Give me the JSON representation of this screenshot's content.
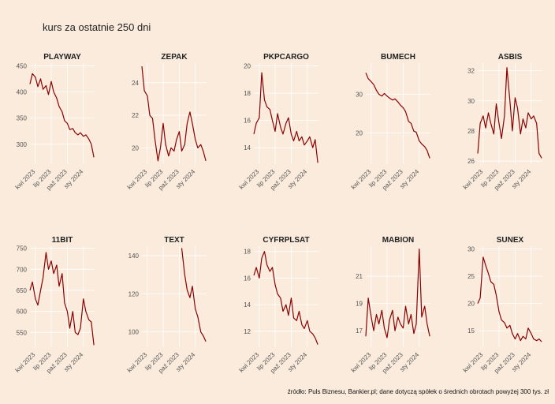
{
  "title": "kurs za ostatnie 250 dni",
  "caption": "źródło: Puls Biznesu, Bankier.pl; dane dotyczą spółek o średnich obrotach powyżej 300 tys. zł",
  "colors": {
    "background": "#faebdc",
    "line": "#8b0000",
    "grid": "#ffffff"
  },
  "chart_data": [
    {
      "type": "line",
      "title": "PLAYWAY",
      "ylim": [
        262,
        455
      ],
      "yticks": [
        300,
        350,
        400,
        450
      ],
      "xticks": [
        "kwi 2023",
        "lip 2023",
        "paź 2023",
        "sty 2024"
      ],
      "x_domain": [
        "2023-03-01",
        "2024-03-05"
      ],
      "x": [
        "2023-03-01",
        "2023-03-15",
        "2023-04-01",
        "2023-04-15",
        "2023-05-01",
        "2023-05-15",
        "2023-06-01",
        "2023-06-15",
        "2023-07-01",
        "2023-07-15",
        "2023-08-01",
        "2023-08-15",
        "2023-09-01",
        "2023-09-15",
        "2023-10-01",
        "2023-10-15",
        "2023-11-01",
        "2023-11-15",
        "2023-12-01",
        "2023-12-15",
        "2024-01-01",
        "2024-01-15",
        "2024-02-01",
        "2024-02-15",
        "2024-03-01"
      ],
      "values": [
        415,
        435,
        428,
        410,
        425,
        405,
        412,
        395,
        420,
        400,
        388,
        372,
        362,
        345,
        340,
        328,
        330,
        322,
        318,
        322,
        315,
        318,
        310,
        300,
        275
      ]
    },
    {
      "type": "line",
      "title": "ZEPAK",
      "ylim": [
        19.0,
        25.2
      ],
      "yticks": [
        20,
        22,
        24
      ],
      "xticks": [
        "kwi 2023",
        "lip 2023",
        "paź 2023",
        "sty 2024"
      ],
      "x_domain": [
        "2023-03-01",
        "2024-03-05"
      ],
      "x": [
        "2023-03-01",
        "2023-03-15",
        "2023-04-01",
        "2023-04-15",
        "2023-05-01",
        "2023-05-15",
        "2023-06-01",
        "2023-06-15",
        "2023-07-01",
        "2023-07-15",
        "2023-08-01",
        "2023-08-15",
        "2023-09-01",
        "2023-09-15",
        "2023-10-01",
        "2023-10-15",
        "2023-11-01",
        "2023-11-15",
        "2023-12-01",
        "2023-12-15",
        "2024-01-01",
        "2024-01-15",
        "2024-02-01",
        "2024-02-15",
        "2024-03-01"
      ],
      "values": [
        25.0,
        23.5,
        23.2,
        22.0,
        21.8,
        20.5,
        19.2,
        20.0,
        21.5,
        20.2,
        19.5,
        20.0,
        19.8,
        20.5,
        21.0,
        19.8,
        20.2,
        21.5,
        22.2,
        21.5,
        20.5,
        20.0,
        20.2,
        19.8,
        19.2
      ]
    },
    {
      "type": "line",
      "title": "PKPCARGO",
      "ylim": [
        12.8,
        20.2
      ],
      "yticks": [
        14,
        16,
        18,
        20
      ],
      "xticks": [
        "kwi 2023",
        "lip 2023",
        "paź 2023",
        "sty 2024"
      ],
      "x_domain": [
        "2023-03-01",
        "2024-03-05"
      ],
      "x": [
        "2023-03-01",
        "2023-03-15",
        "2023-04-01",
        "2023-04-15",
        "2023-05-01",
        "2023-05-15",
        "2023-06-01",
        "2023-06-15",
        "2023-07-01",
        "2023-07-15",
        "2023-08-01",
        "2023-08-15",
        "2023-09-01",
        "2023-09-15",
        "2023-10-01",
        "2023-10-15",
        "2023-11-01",
        "2023-11-15",
        "2023-12-01",
        "2023-12-15",
        "2024-01-01",
        "2024-01-15",
        "2024-02-01",
        "2024-02-15",
        "2024-03-01"
      ],
      "values": [
        15.0,
        15.8,
        16.2,
        19.5,
        17.5,
        17.0,
        16.8,
        16.0,
        15.2,
        16.5,
        15.5,
        15.0,
        15.8,
        16.2,
        15.0,
        14.5,
        15.2,
        14.5,
        14.8,
        14.2,
        14.5,
        14.8,
        14.0,
        14.6,
        12.9
      ]
    },
    {
      "type": "line",
      "title": "BUMECH",
      "ylim": [
        12,
        38
      ],
      "yticks": [
        20,
        30
      ],
      "xticks": [
        "kwi 2023",
        "lip 2023",
        "paź 2023",
        "sty 2024"
      ],
      "x_domain": [
        "2023-03-01",
        "2024-03-05"
      ],
      "x": [
        "2023-03-01",
        "2023-03-15",
        "2023-04-01",
        "2023-04-15",
        "2023-05-01",
        "2023-05-15",
        "2023-06-01",
        "2023-06-15",
        "2023-07-01",
        "2023-07-15",
        "2023-08-01",
        "2023-08-15",
        "2023-09-01",
        "2023-09-15",
        "2023-10-01",
        "2023-10-15",
        "2023-11-01",
        "2023-11-15",
        "2023-12-01",
        "2023-12-15",
        "2024-01-01",
        "2024-01-15",
        "2024-02-01",
        "2024-02-15",
        "2024-03-01"
      ],
      "values": [
        35.5,
        34.0,
        33.2,
        32.5,
        31.0,
        30.0,
        29.5,
        30.2,
        29.5,
        29.0,
        28.5,
        28.8,
        28.0,
        27.2,
        26.5,
        25.5,
        23.0,
        22.5,
        20.5,
        20.2,
        18.0,
        17.2,
        16.5,
        15.5,
        13.5
      ]
    },
    {
      "type": "line",
      "title": "ASBIS",
      "ylim": [
        25.8,
        32.5
      ],
      "yticks": [
        26,
        28,
        30,
        32
      ],
      "xticks": [
        "kwi 2023",
        "lip 2023",
        "paź 2023",
        "sty 2024"
      ],
      "x_domain": [
        "2023-03-01",
        "2024-03-05"
      ],
      "x": [
        "2023-03-01",
        "2023-03-15",
        "2023-04-01",
        "2023-04-15",
        "2023-05-01",
        "2023-05-15",
        "2023-06-01",
        "2023-06-15",
        "2023-07-01",
        "2023-07-15",
        "2023-08-01",
        "2023-08-15",
        "2023-09-01",
        "2023-09-15",
        "2023-10-01",
        "2023-10-15",
        "2023-11-01",
        "2023-11-15",
        "2023-12-01",
        "2023-12-15",
        "2024-01-01",
        "2024-01-15",
        "2024-02-01",
        "2024-02-15",
        "2024-03-01"
      ],
      "values": [
        26.5,
        28.5,
        29.0,
        28.2,
        29.2,
        28.5,
        27.8,
        29.8,
        28.5,
        27.5,
        29.0,
        32.2,
        30.0,
        28.0,
        30.2,
        29.5,
        27.8,
        28.8,
        28.2,
        29.2,
        28.8,
        29.0,
        28.5,
        26.5,
        26.2
      ]
    },
    {
      "type": "line",
      "title": "11BIT",
      "ylim": [
        515,
        755
      ],
      "yticks": [
        550,
        600,
        650,
        700,
        750
      ],
      "xticks": [
        "kwi 2023",
        "lip 2023",
        "paź 2023",
        "sty 2024"
      ],
      "x_domain": [
        "2023-03-01",
        "2024-03-05"
      ],
      "x": [
        "2023-03-01",
        "2023-03-15",
        "2023-04-01",
        "2023-04-15",
        "2023-05-01",
        "2023-05-15",
        "2023-06-01",
        "2023-06-15",
        "2023-07-01",
        "2023-07-15",
        "2023-08-01",
        "2023-08-15",
        "2023-09-01",
        "2023-09-15",
        "2023-10-01",
        "2023-10-15",
        "2023-11-01",
        "2023-11-15",
        "2023-12-01",
        "2023-12-15",
        "2024-01-01",
        "2024-01-15",
        "2024-02-01",
        "2024-02-15",
        "2024-03-01"
      ],
      "values": [
        650,
        670,
        630,
        615,
        650,
        680,
        740,
        700,
        720,
        690,
        710,
        660,
        690,
        620,
        600,
        560,
        600,
        550,
        545,
        560,
        630,
        600,
        580,
        575,
        520
      ]
    },
    {
      "type": "line",
      "title": "TEXT",
      "ylim": [
        92,
        145
      ],
      "yticks": [
        100,
        120,
        140
      ],
      "xticks": [
        "kwi 2023",
        "lip 2023",
        "paź 2023",
        "sty 2024"
      ],
      "x_domain": [
        "2023-03-01",
        "2024-03-05"
      ],
      "x": [
        "2023-10-15",
        "2023-11-01",
        "2023-11-15",
        "2023-12-01",
        "2023-12-15",
        "2024-01-01",
        "2024-01-15",
        "2024-02-01",
        "2024-02-15",
        "2024-03-01"
      ],
      "values": [
        144,
        130,
        122,
        118,
        124,
        112,
        108,
        100,
        98,
        95
      ]
    },
    {
      "type": "line",
      "title": "CYFRPLSAT",
      "ylim": [
        10.8,
        18.4
      ],
      "yticks": [
        12,
        14,
        16,
        18
      ],
      "xticks": [
        "kwi 2023",
        "lip 2023",
        "paź 2023",
        "sty 2024"
      ],
      "x_domain": [
        "2023-03-01",
        "2024-03-05"
      ],
      "x": [
        "2023-03-01",
        "2023-03-15",
        "2023-04-01",
        "2023-04-15",
        "2023-05-01",
        "2023-05-15",
        "2023-06-01",
        "2023-06-15",
        "2023-07-01",
        "2023-07-15",
        "2023-08-01",
        "2023-08-15",
        "2023-09-01",
        "2023-09-15",
        "2023-10-01",
        "2023-10-15",
        "2023-11-01",
        "2023-11-15",
        "2023-12-01",
        "2023-12-15",
        "2024-01-01",
        "2024-01-15",
        "2024-02-01",
        "2024-02-15",
        "2024-03-01"
      ],
      "values": [
        16.2,
        16.8,
        16.0,
        17.5,
        18.0,
        17.0,
        16.5,
        16.8,
        15.5,
        14.8,
        14.5,
        13.5,
        14.0,
        13.2,
        14.5,
        13.0,
        12.8,
        13.5,
        12.5,
        12.2,
        12.8,
        12.0,
        11.8,
        11.5,
        11.0
      ]
    },
    {
      "type": "line",
      "title": "MABION",
      "ylim": [
        15.8,
        23.2
      ],
      "yticks": [
        17,
        19,
        21
      ],
      "xticks": [
        "kwi 2023",
        "lip 2023",
        "paź 2023",
        "sty 2024"
      ],
      "x_domain": [
        "2023-03-01",
        "2024-03-05"
      ],
      "x": [
        "2023-03-01",
        "2023-03-15",
        "2023-04-01",
        "2023-04-15",
        "2023-05-01",
        "2023-05-15",
        "2023-06-01",
        "2023-06-15",
        "2023-07-01",
        "2023-07-15",
        "2023-08-01",
        "2023-08-15",
        "2023-09-01",
        "2023-09-15",
        "2023-10-01",
        "2023-10-15",
        "2023-11-01",
        "2023-11-15",
        "2023-12-01",
        "2023-12-15",
        "2024-01-01",
        "2024-01-15",
        "2024-02-01",
        "2024-02-15",
        "2024-03-01"
      ],
      "values": [
        16.6,
        19.4,
        18.0,
        17.0,
        18.2,
        17.5,
        18.5,
        17.2,
        16.5,
        17.8,
        18.5,
        17.0,
        18.0,
        17.5,
        17.2,
        18.8,
        17.5,
        18.2,
        16.8,
        17.5,
        23.0,
        18.0,
        18.8,
        17.5,
        16.6
      ]
    },
    {
      "type": "line",
      "title": "SUNEX",
      "ylim": [
        12,
        30.5
      ],
      "yticks": [
        15,
        20,
        25,
        30
      ],
      "xticks": [
        "kwi 2023",
        "lip 2023",
        "paź 2023",
        "sty 2024"
      ],
      "x_domain": [
        "2023-03-01",
        "2024-03-05"
      ],
      "x": [
        "2023-03-01",
        "2023-03-15",
        "2023-04-01",
        "2023-04-15",
        "2023-05-01",
        "2023-05-15",
        "2023-06-01",
        "2023-06-15",
        "2023-07-01",
        "2023-07-15",
        "2023-08-01",
        "2023-08-15",
        "2023-09-01",
        "2023-09-15",
        "2023-10-01",
        "2023-10-15",
        "2023-11-01",
        "2023-11-15",
        "2023-12-01",
        "2023-12-15",
        "2024-01-01",
        "2024-01-15",
        "2024-02-01",
        "2024-02-15",
        "2024-03-01"
      ],
      "values": [
        20.0,
        21.0,
        28.5,
        27.0,
        25.5,
        24.0,
        23.5,
        21.5,
        18.5,
        17.0,
        16.5,
        15.5,
        16.0,
        14.5,
        13.5,
        14.5,
        13.2,
        14.0,
        13.5,
        15.5,
        14.5,
        13.5,
        13.2,
        13.5,
        13.0
      ]
    }
  ]
}
